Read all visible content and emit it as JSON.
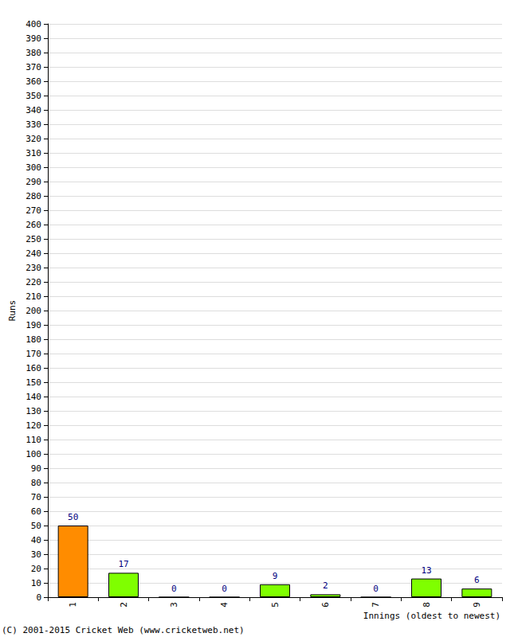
{
  "chart_data": {
    "type": "bar",
    "y_label": "Runs",
    "x_label": "Innings (oldest to newest)",
    "annotations": [
      "(C) 2001-2015 Cricket Web (www.cricketweb.net)"
    ],
    "categories": [
      "1",
      "2",
      "3",
      "4",
      "5",
      "6",
      "7",
      "8",
      "9"
    ],
    "values": [
      50,
      17,
      0,
      0,
      9,
      2,
      0,
      13,
      6
    ],
    "colors": [
      "#ff8c00",
      "#7fff00",
      "#7fff00",
      "#7fff00",
      "#7fff00",
      "#7fff00",
      "#7fff00",
      "#7fff00",
      "#7fff00"
    ],
    "ylim": [
      0,
      400
    ],
    "yticks": [
      0,
      10,
      20,
      30,
      40,
      50,
      60,
      70,
      80,
      90,
      100,
      110,
      120,
      130,
      140,
      150,
      160,
      170,
      180,
      190,
      200,
      210,
      220,
      230,
      240,
      250,
      260,
      270,
      280,
      290,
      300,
      310,
      320,
      330,
      340,
      350,
      360,
      370,
      380,
      390,
      400
    ],
    "grid": true,
    "data_labels": true
  }
}
